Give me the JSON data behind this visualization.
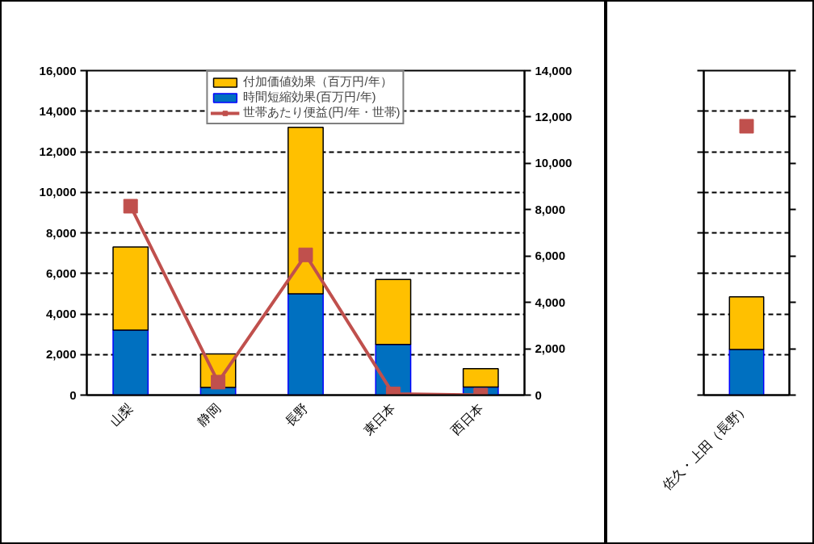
{
  "chart_data": [
    {
      "type": "bar",
      "stacked": true,
      "categories": [
        "山梨",
        "静岡",
        "長野",
        "東日本",
        "西日本"
      ],
      "series": [
        {
          "name": "時間短縮効果(百万円/年)",
          "color": "#0070c0",
          "values": [
            3200,
            380,
            5000,
            2500,
            400
          ]
        },
        {
          "name": "付加価値効果（百万円/年）",
          "color": "#ffc000",
          "values": [
            4100,
            1650,
            8200,
            3200,
            900
          ]
        },
        {
          "name": "世帯あたり便益(円/年・世帯)",
          "type": "line",
          "axis": "y2",
          "color": "#c0504d",
          "marker": "square",
          "values": [
            8150,
            560,
            6050,
            50,
            0
          ]
        }
      ],
      "ylim": [
        0,
        16000
      ],
      "yticks": [
        {
          "value": 0,
          "label": "0"
        },
        {
          "value": 2000,
          "label": "2,000"
        },
        {
          "value": 4000,
          "label": "4,000"
        },
        {
          "value": 6000,
          "label": "6,000"
        },
        {
          "value": 8000,
          "label": "8,000"
        },
        {
          "value": 10000,
          "label": "10,000"
        },
        {
          "value": 12000,
          "label": "12,000"
        },
        {
          "value": 14000,
          "label": "14,000"
        },
        {
          "value": 16000,
          "label": "16,000"
        }
      ],
      "y2lim": [
        0,
        14000
      ],
      "y2ticks": [
        {
          "value": 0,
          "label": "0"
        },
        {
          "value": 2000,
          "label": "2,000"
        },
        {
          "value": 4000,
          "label": "4,000"
        },
        {
          "value": 6000,
          "label": "6,000"
        },
        {
          "value": 8000,
          "label": "8,000"
        },
        {
          "value": 10000,
          "label": "10,000"
        },
        {
          "value": 12000,
          "label": "12,000"
        },
        {
          "value": 14000,
          "label": "14,000"
        }
      ],
      "grid": "y",
      "legend": "top"
    },
    {
      "type": "bar",
      "stacked": true,
      "categories": [
        "佐久・上田（長野）"
      ],
      "series": [
        {
          "color": "#0070c0",
          "values": [
            2250
          ]
        },
        {
          "color": "#ffc000",
          "values": [
            2600
          ]
        },
        {
          "type": "scatter",
          "axis": "y2",
          "color": "#c0504d",
          "marker": "square",
          "values": [
            11600
          ]
        }
      ],
      "ylim": [
        0,
        16000
      ],
      "yticks": [
        {
          "value": 0,
          "label": null
        },
        {
          "value": 2000,
          "label": null
        },
        {
          "value": 4000,
          "label": null
        },
        {
          "value": 6000,
          "label": null
        },
        {
          "value": 8000,
          "label": null
        },
        {
          "value": 10000,
          "label": null
        },
        {
          "value": 12000,
          "label": null
        },
        {
          "value": 14000,
          "label": null
        },
        {
          "value": 16000,
          "label": null
        }
      ],
      "y2lim": [
        0,
        14000
      ],
      "y2ticks": [
        {
          "value": 0,
          "label": null
        },
        {
          "value": 2000,
          "label": null
        },
        {
          "value": 4000,
          "label": null
        },
        {
          "value": 6000,
          "label": null
        },
        {
          "value": 8000,
          "label": null
        },
        {
          "value": 10000,
          "label": null
        },
        {
          "value": 12000,
          "label": null
        },
        {
          "value": 14000,
          "label": null
        }
      ],
      "grid": "y",
      "tick_labels": "x"
    }
  ]
}
